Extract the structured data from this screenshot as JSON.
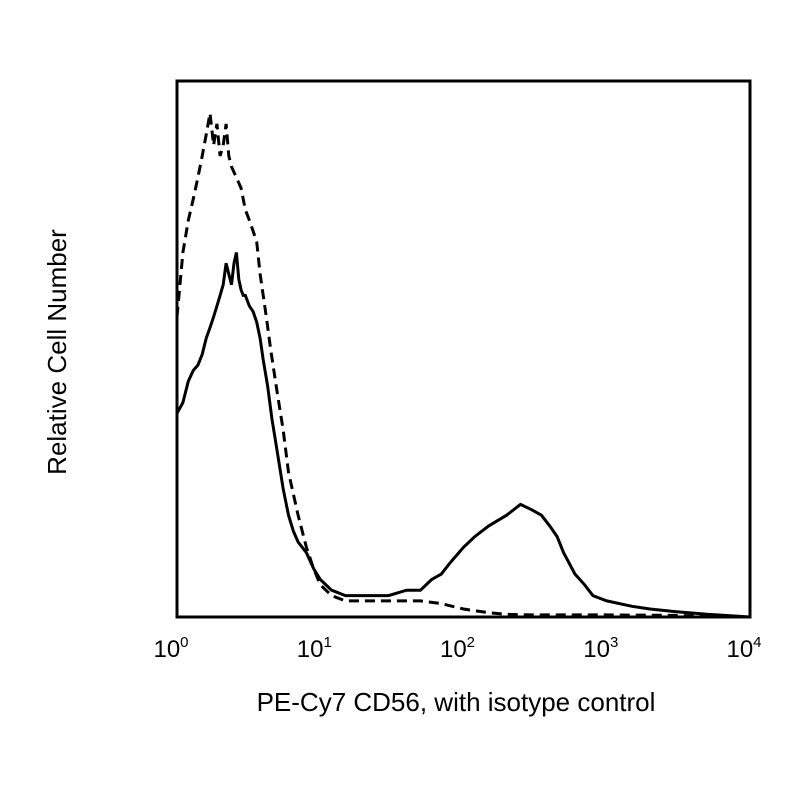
{
  "chart_data": {
    "type": "line",
    "title": "",
    "xlabel": "PE-Cy7 CD56, with isotype control",
    "ylabel": "Relative Cell Number",
    "x_scale": "log10",
    "xlim": [
      1,
      10000
    ],
    "ylim": [
      0,
      100
    ],
    "x_ticks": [
      {
        "base": "10",
        "exp": "0"
      },
      {
        "base": "10",
        "exp": "1"
      },
      {
        "base": "10",
        "exp": "2"
      },
      {
        "base": "10",
        "exp": "3"
      },
      {
        "base": "10",
        "exp": "4"
      }
    ],
    "grid": false,
    "legend": "none",
    "series": [
      {
        "style": "solid",
        "color": "#000000",
        "points": [
          [
            1.0,
            38
          ],
          [
            1.1,
            40
          ],
          [
            1.2,
            44
          ],
          [
            1.3,
            46
          ],
          [
            1.4,
            47
          ],
          [
            1.5,
            49
          ],
          [
            1.6,
            52
          ],
          [
            1.7,
            54
          ],
          [
            1.8,
            56
          ],
          [
            1.9,
            58
          ],
          [
            2.0,
            60
          ],
          [
            2.1,
            62
          ],
          [
            2.2,
            66
          ],
          [
            2.3,
            64
          ],
          [
            2.4,
            62
          ],
          [
            2.5,
            66
          ],
          [
            2.6,
            68
          ],
          [
            2.7,
            63
          ],
          [
            2.8,
            61
          ],
          [
            2.9,
            60
          ],
          [
            3.0,
            60
          ],
          [
            3.2,
            58
          ],
          [
            3.4,
            57
          ],
          [
            3.6,
            55
          ],
          [
            3.8,
            52
          ],
          [
            4.0,
            48
          ],
          [
            4.3,
            43
          ],
          [
            4.6,
            37
          ],
          [
            5.0,
            31
          ],
          [
            5.5,
            24
          ],
          [
            6.0,
            19
          ],
          [
            6.5,
            16
          ],
          [
            7.0,
            14
          ],
          [
            8.0,
            12
          ],
          [
            9.0,
            9
          ],
          [
            10.0,
            7
          ],
          [
            12.0,
            5
          ],
          [
            15.0,
            4
          ],
          [
            20.0,
            4
          ],
          [
            25.0,
            4
          ],
          [
            30.0,
            4
          ],
          [
            40.0,
            5
          ],
          [
            50.0,
            5
          ],
          [
            60.0,
            7
          ],
          [
            70.0,
            8
          ],
          [
            80.0,
            10
          ],
          [
            100.0,
            13
          ],
          [
            120.0,
            15
          ],
          [
            150.0,
            17
          ],
          [
            200.0,
            19
          ],
          [
            250.0,
            21
          ],
          [
            300.0,
            20
          ],
          [
            350.0,
            19
          ],
          [
            400.0,
            17
          ],
          [
            450.0,
            15
          ],
          [
            500.0,
            12
          ],
          [
            600.0,
            8
          ],
          [
            700.0,
            6
          ],
          [
            800.0,
            4
          ],
          [
            1000.0,
            3
          ],
          [
            1500.0,
            2
          ],
          [
            2000.0,
            1.5
          ],
          [
            3000.0,
            1
          ],
          [
            5000.0,
            0.5
          ],
          [
            10000.0,
            0
          ]
        ]
      },
      {
        "style": "dashed",
        "color": "#000000",
        "points": [
          [
            1.0,
            56
          ],
          [
            1.1,
            68
          ],
          [
            1.2,
            74
          ],
          [
            1.3,
            78
          ],
          [
            1.4,
            82
          ],
          [
            1.5,
            86
          ],
          [
            1.6,
            90
          ],
          [
            1.7,
            94
          ],
          [
            1.8,
            88
          ],
          [
            1.9,
            92
          ],
          [
            2.0,
            86
          ],
          [
            2.1,
            88
          ],
          [
            2.2,
            92
          ],
          [
            2.3,
            86
          ],
          [
            2.4,
            84
          ],
          [
            2.6,
            82
          ],
          [
            2.8,
            80
          ],
          [
            3.0,
            76
          ],
          [
            3.2,
            74
          ],
          [
            3.4,
            72
          ],
          [
            3.6,
            70
          ],
          [
            3.8,
            64
          ],
          [
            4.0,
            60
          ],
          [
            4.2,
            56
          ],
          [
            4.5,
            50
          ],
          [
            5.0,
            42
          ],
          [
            5.5,
            35
          ],
          [
            6.0,
            27
          ],
          [
            7.0,
            19
          ],
          [
            8.0,
            13
          ],
          [
            9.0,
            9
          ],
          [
            10.0,
            6
          ],
          [
            12.0,
            4
          ],
          [
            15.0,
            3
          ],
          [
            20.0,
            3
          ],
          [
            30.0,
            3
          ],
          [
            50.0,
            3
          ],
          [
            70.0,
            2.5
          ],
          [
            100.0,
            1.5
          ],
          [
            150.0,
            0.8
          ],
          [
            200.0,
            0.5
          ],
          [
            300.0,
            0.4
          ],
          [
            500.0,
            0.4
          ],
          [
            1000.0,
            0.4
          ],
          [
            3000.0,
            0.3
          ],
          [
            10000.0,
            0
          ]
        ]
      }
    ]
  }
}
